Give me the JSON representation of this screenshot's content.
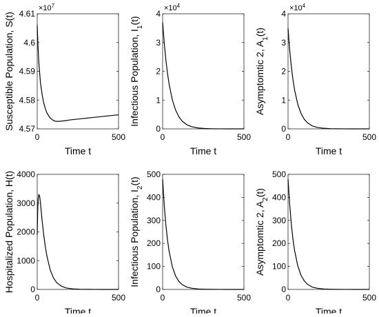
{
  "chart_data": [
    {
      "type": "line",
      "ylabel": "Susceptible Population, S(t)",
      "xlabel": "Time t",
      "xlim": [
        0,
        500
      ],
      "ylim": [
        45700000,
        46100000
      ],
      "xticks": [
        0,
        500
      ],
      "xtick_labels": [
        "0",
        "500"
      ],
      "yticks": [
        45700000,
        45800000,
        45900000,
        46000000,
        46100000
      ],
      "ytick_labels": [
        "4.57",
        "4.58",
        "4.59",
        "4.6",
        "4.61"
      ],
      "exponent": "7",
      "x": [
        0,
        5,
        10,
        20,
        30,
        40,
        50,
        60,
        70,
        80,
        90,
        100,
        110,
        120,
        130,
        150,
        180,
        200,
        250,
        300,
        350,
        400,
        450,
        500
      ],
      "y": [
        46060000,
        45985000,
        45930000,
        45860000,
        45820000,
        45790000,
        45770000,
        45755000,
        45746000,
        45738000,
        45733000,
        45729000,
        45727000,
        45726000,
        45726000,
        45727000,
        45729000,
        45731000,
        45734000,
        45737000,
        45740000,
        45743000,
        45746000,
        45749000
      ]
    },
    {
      "type": "line",
      "ylabel": "Infectious Population, I_1(t)",
      "xlabel": "Time t",
      "xlim": [
        0,
        500
      ],
      "ylim": [
        0,
        40000
      ],
      "xticks": [
        0,
        500
      ],
      "xtick_labels": [
        "0",
        "500"
      ],
      "yticks": [
        0,
        10000,
        20000,
        30000,
        40000
      ],
      "ytick_labels": [
        "0",
        "1",
        "2",
        "3",
        "4"
      ],
      "exponent": "4",
      "x": [
        0,
        10,
        20,
        30,
        40,
        60,
        80,
        100,
        120,
        150,
        180,
        220,
        260,
        300,
        350,
        400,
        450,
        500
      ],
      "y": [
        37000,
        29800,
        24000,
        19300,
        15500,
        10000,
        6500,
        4200,
        2700,
        1400,
        730,
        300,
        120,
        50,
        20,
        8,
        3,
        1
      ]
    },
    {
      "type": "line",
      "ylabel": "Asymptomtic 2, A_1(t)",
      "xlabel": "Time t",
      "xlim": [
        0,
        500
      ],
      "ylim": [
        0,
        40000
      ],
      "xticks": [
        0,
        500
      ],
      "xtick_labels": [
        "0",
        "500"
      ],
      "yticks": [
        0,
        10000,
        20000,
        30000,
        40000
      ],
      "ytick_labels": [
        "0",
        "1",
        "2",
        "3",
        "4"
      ],
      "exponent": "4",
      "x": [
        0,
        10,
        20,
        30,
        40,
        60,
        80,
        100,
        120,
        150,
        180,
        220,
        260,
        300,
        350,
        400,
        450,
        500
      ],
      "y": [
        35000,
        27500,
        21800,
        17200,
        13600,
        8500,
        5300,
        3300,
        2100,
        1000,
        500,
        200,
        80,
        30,
        10,
        4,
        2,
        1
      ]
    },
    {
      "type": "line",
      "ylabel": "Hospitalized Population, H(t)",
      "xlabel": "Time t",
      "xlim": [
        0,
        500
      ],
      "ylim": [
        0,
        4000
      ],
      "xticks": [
        0,
        500
      ],
      "xtick_labels": [
        "0",
        "500"
      ],
      "yticks": [
        0,
        1000,
        2000,
        3000,
        4000
      ],
      "ytick_labels": [
        "0",
        "1000",
        "2000",
        "3000",
        "4000"
      ],
      "exponent": "",
      "x": [
        0,
        3,
        6,
        10,
        15,
        20,
        25,
        30,
        40,
        50,
        60,
        80,
        100,
        120,
        150,
        180,
        220,
        260,
        300,
        350,
        400,
        450,
        500
      ],
      "y": [
        1900,
        2750,
        3150,
        3300,
        3240,
        3000,
        2700,
        2400,
        1900,
        1480,
        1150,
        680,
        400,
        235,
        110,
        50,
        20,
        8,
        3,
        1,
        0,
        0,
        0
      ]
    },
    {
      "type": "line",
      "ylabel": "Infectious Population, I_2(t)",
      "xlabel": "Time t",
      "xlim": [
        0,
        500
      ],
      "ylim": [
        0,
        500
      ],
      "xticks": [
        0,
        500
      ],
      "xtick_labels": [
        "0",
        "500"
      ],
      "yticks": [
        0,
        100,
        200,
        300,
        400,
        500
      ],
      "ytick_labels": [
        "0",
        "100",
        "200",
        "300",
        "400",
        "500"
      ],
      "exponent": "",
      "x": [
        0,
        10,
        20,
        30,
        40,
        60,
        80,
        100,
        120,
        150,
        180,
        220,
        260,
        300,
        350,
        400,
        450,
        500
      ],
      "y": [
        480,
        365,
        280,
        215,
        165,
        98,
        58,
        35,
        21,
        10,
        5,
        2,
        1,
        0.4,
        0.2,
        0.1,
        0,
        0
      ]
    },
    {
      "type": "line",
      "ylabel": "Asymptomtic 2, A_2(t)",
      "xlabel": "Time t",
      "xlim": [
        0,
        500
      ],
      "ylim": [
        0,
        500
      ],
      "xticks": [
        0,
        500
      ],
      "xtick_labels": [
        "0",
        "500"
      ],
      "yticks": [
        0,
        100,
        200,
        300,
        400,
        500
      ],
      "ytick_labels": [
        "0",
        "100",
        "200",
        "300",
        "400",
        "500"
      ],
      "exponent": "",
      "x": [
        0,
        10,
        20,
        30,
        40,
        60,
        80,
        100,
        120,
        150,
        180,
        220,
        260,
        300,
        350,
        400,
        450,
        500
      ],
      "y": [
        480,
        370,
        285,
        220,
        170,
        102,
        61,
        37,
        22,
        10,
        5,
        2,
        1,
        0.4,
        0.2,
        0.1,
        0,
        0
      ]
    }
  ]
}
